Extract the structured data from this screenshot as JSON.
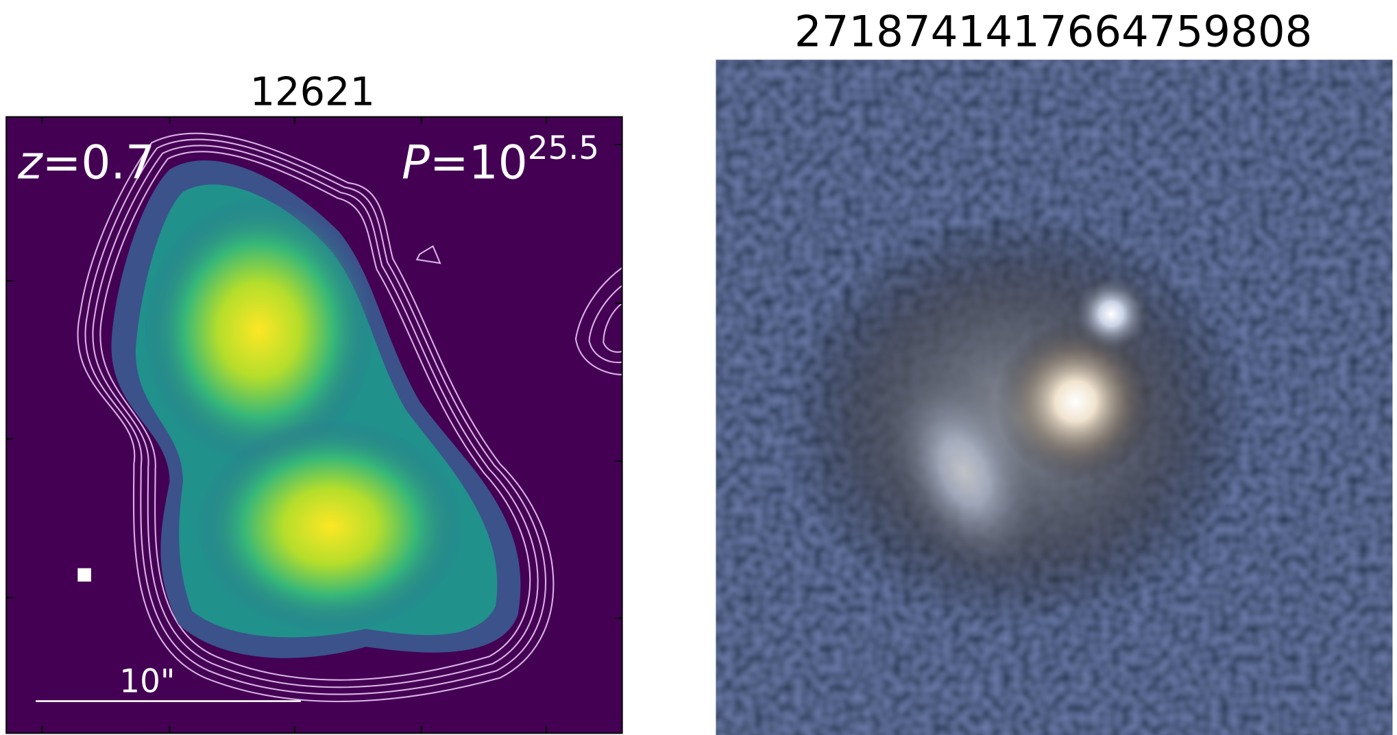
{
  "left_panel": {
    "title": "12621",
    "redshift": {
      "variable": "z",
      "text": "=0.7"
    },
    "power": {
      "variable": "P",
      "text": "=10",
      "exponent": "25.5"
    },
    "scale_bar": "10\""
  },
  "right_panel": {
    "title": "2718741417664759808"
  }
}
